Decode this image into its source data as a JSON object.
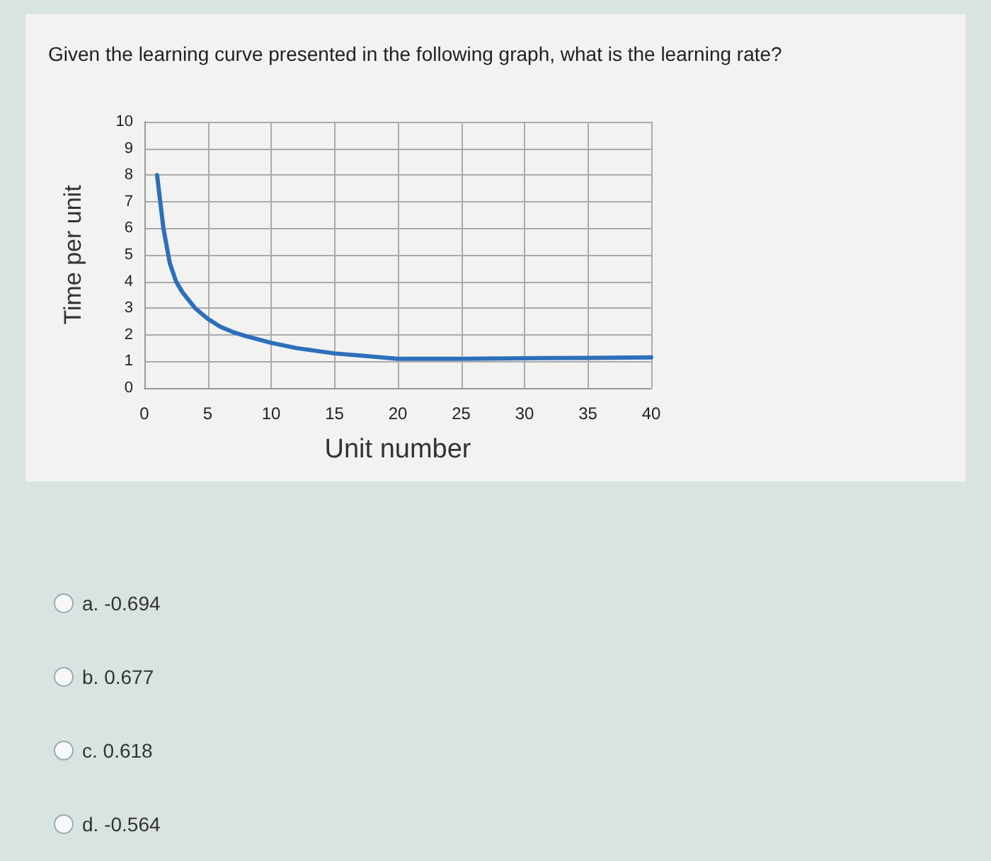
{
  "chart_data": {
    "type": "line",
    "title": "Given the learning curve presented in the following graph, what is the learning rate?",
    "xlabel": "Unit number",
    "ylabel": "Time per unit",
    "x": [
      1,
      1.5,
      2,
      2.5,
      3,
      3.5,
      4,
      5,
      6,
      7,
      8,
      10,
      12,
      15,
      18,
      20,
      25,
      30,
      35,
      40
    ],
    "series": [
      {
        "color": "#2e6fba",
        "values": [
          8,
          6,
          4.7,
          4.0,
          3.6,
          3.3,
          3.0,
          2.6,
          2.3,
          2.1,
          1.95,
          1.7,
          1.5,
          1.3,
          1.18,
          1.1,
          1.1,
          1.12,
          1.13,
          1.15
        ]
      }
    ],
    "xlim": [
      0,
      40
    ],
    "xticks": [
      0,
      5,
      10,
      15,
      20,
      25,
      30,
      35,
      40
    ],
    "ylim": [
      0,
      10
    ],
    "yticks": [
      0,
      1,
      2,
      3,
      4,
      5,
      6,
      7,
      8,
      9,
      10
    ],
    "grid": true,
    "marker": "none",
    "line_style": "solid",
    "annotations": [
      "a. -0.694",
      "b. 0.677",
      "c. 0.618",
      "d. -0.564"
    ]
  }
}
